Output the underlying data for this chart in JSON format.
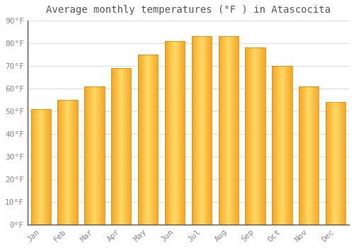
{
  "title": "Average monthly temperatures (°F ) in Atascocita",
  "months": [
    "Jan",
    "Feb",
    "Mar",
    "Apr",
    "May",
    "Jun",
    "Jul",
    "Aug",
    "Sep",
    "Oct",
    "Nov",
    "Dec"
  ],
  "values": [
    51,
    55,
    61,
    69,
    75,
    81,
    83,
    83,
    78,
    70,
    61,
    54
  ],
  "bar_color_left": "#F5A623",
  "bar_color_center": "#FFD966",
  "bar_color_right": "#F5A623",
  "background_color": "#FFFFFF",
  "grid_color": "#DDDDDD",
  "text_color": "#888888",
  "title_color": "#555555",
  "spine_color": "#555555",
  "ylim": [
    0,
    90
  ],
  "yticks": [
    0,
    10,
    20,
    30,
    40,
    50,
    60,
    70,
    80,
    90
  ],
  "ytick_labels": [
    "0°F",
    "10°F",
    "20°F",
    "30°F",
    "40°F",
    "50°F",
    "60°F",
    "70°F",
    "80°F",
    "90°F"
  ],
  "title_fontsize": 10,
  "tick_fontsize": 8
}
